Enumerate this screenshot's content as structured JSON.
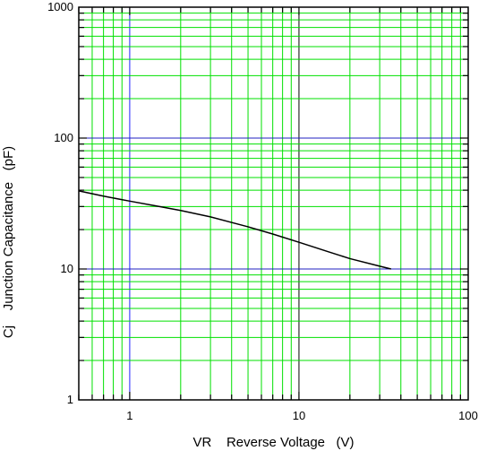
{
  "chart_data": {
    "type": "line",
    "title": "",
    "xlabel": "VR    Reverse Voltage   (V)",
    "ylabel": "Cj    Junction Capacitance   (pF)",
    "xscale": "log",
    "yscale": "log",
    "xlim": [
      0.5,
      100
    ],
    "ylim": [
      1,
      1000
    ],
    "grid": true,
    "x_ticks": [
      {
        "value": 1,
        "label": "1"
      },
      {
        "value": 10,
        "label": "10"
      },
      {
        "value": 100,
        "label": "100"
      }
    ],
    "y_ticks": [
      {
        "value": 1,
        "label": "1"
      },
      {
        "value": 10,
        "label": "10"
      },
      {
        "value": 100,
        "label": "100"
      },
      {
        "value": 1000,
        "label": "1000"
      }
    ],
    "series": [
      {
        "x": [
          0.5,
          0.7,
          1,
          1.5,
          2,
          3,
          5,
          7,
          10,
          15,
          20,
          30,
          35
        ],
        "y": [
          39.5,
          36,
          33,
          30,
          28,
          25,
          21,
          18.5,
          16,
          13.5,
          12,
          10.5,
          10
        ],
        "color": "#000000"
      }
    ],
    "colors": {
      "minor_grid": "#00e000",
      "major_grid_h": "#2020c0",
      "major_grid_v": [
        "#2020ff",
        "#000000"
      ],
      "line": "#000000"
    }
  }
}
